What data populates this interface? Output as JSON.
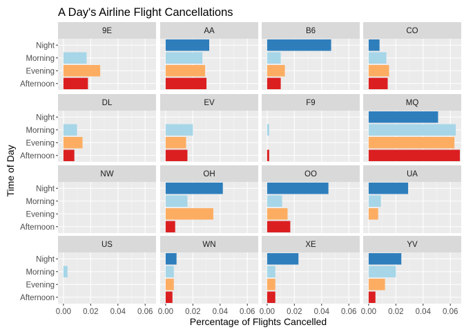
{
  "chart_data": {
    "type": "bar",
    "orientation": "horizontal",
    "faceted": true,
    "facet_layout": "4x4 grid",
    "title": "A Day's Airline Flight Cancellations",
    "xlabel": "Percentage of Flights Cancelled",
    "ylabel": "Time of Day",
    "xlim": [
      -0.004,
      0.068
    ],
    "x_ticks": [
      "0.00",
      "0.02",
      "0.04",
      "0.06"
    ],
    "x_tick_values": [
      0,
      0.02,
      0.04,
      0.06
    ],
    "categories": [
      "Night",
      "Morning",
      "Evening",
      "Afternoon"
    ],
    "colors": {
      "Night": "#2e7ebc",
      "Morning": "#a6d6e8",
      "Evening": "#fdad62",
      "Afternoon": "#db1f21"
    },
    "grid": true,
    "legend": "none",
    "panel_background": "#ebebeb",
    "strip_background": "#d9d9d9",
    "facets": [
      {
        "label": "9E",
        "values": {
          "Night": 0,
          "Morning": 0.017,
          "Evening": 0.027,
          "Afternoon": 0.018
        }
      },
      {
        "label": "AA",
        "values": {
          "Night": 0.032,
          "Morning": 0.027,
          "Evening": 0.029,
          "Afternoon": 0.03
        }
      },
      {
        "label": "B6",
        "values": {
          "Night": 0.047,
          "Morning": 0.01,
          "Evening": 0.013,
          "Afternoon": 0.01
        }
      },
      {
        "label": "CO",
        "values": {
          "Night": 0.008,
          "Morning": 0.013,
          "Evening": 0.015,
          "Afternoon": 0.014
        }
      },
      {
        "label": "DL",
        "values": {
          "Night": 0,
          "Morning": 0.01,
          "Evening": 0.014,
          "Afternoon": 0.008
        }
      },
      {
        "label": "EV",
        "values": {
          "Night": 0,
          "Morning": 0.02,
          "Evening": 0.015,
          "Afternoon": 0.016
        }
      },
      {
        "label": "F9",
        "values": {
          "Night": 0,
          "Morning": 0.0015,
          "Evening": 0,
          "Afternoon": 0.0015
        }
      },
      {
        "label": "MQ",
        "values": {
          "Night": 0.051,
          "Morning": 0.064,
          "Evening": 0.063,
          "Afternoon": 0.067
        }
      },
      {
        "label": "NW",
        "values": {
          "Night": 0,
          "Morning": 0,
          "Evening": 0,
          "Afternoon": 0
        }
      },
      {
        "label": "OH",
        "values": {
          "Night": 0.042,
          "Morning": 0.016,
          "Evening": 0.035,
          "Afternoon": 0.007
        }
      },
      {
        "label": "OO",
        "values": {
          "Night": 0.045,
          "Morning": 0.011,
          "Evening": 0.015,
          "Afternoon": 0.017
        }
      },
      {
        "label": "UA",
        "values": {
          "Night": 0.029,
          "Morning": 0.009,
          "Evening": 0.007,
          "Afternoon": 0
        }
      },
      {
        "label": "US",
        "values": {
          "Night": 0,
          "Morning": 0.003,
          "Evening": 0,
          "Afternoon": 0
        }
      },
      {
        "label": "WN",
        "values": {
          "Night": 0.008,
          "Morning": 0.006,
          "Evening": 0.006,
          "Afternoon": 0.005
        }
      },
      {
        "label": "XE",
        "values": {
          "Night": 0.023,
          "Morning": 0.006,
          "Evening": 0.006,
          "Afternoon": 0.006
        }
      },
      {
        "label": "YV",
        "values": {
          "Night": 0.024,
          "Morning": 0.02,
          "Evening": 0.012,
          "Afternoon": 0.005
        }
      }
    ]
  }
}
